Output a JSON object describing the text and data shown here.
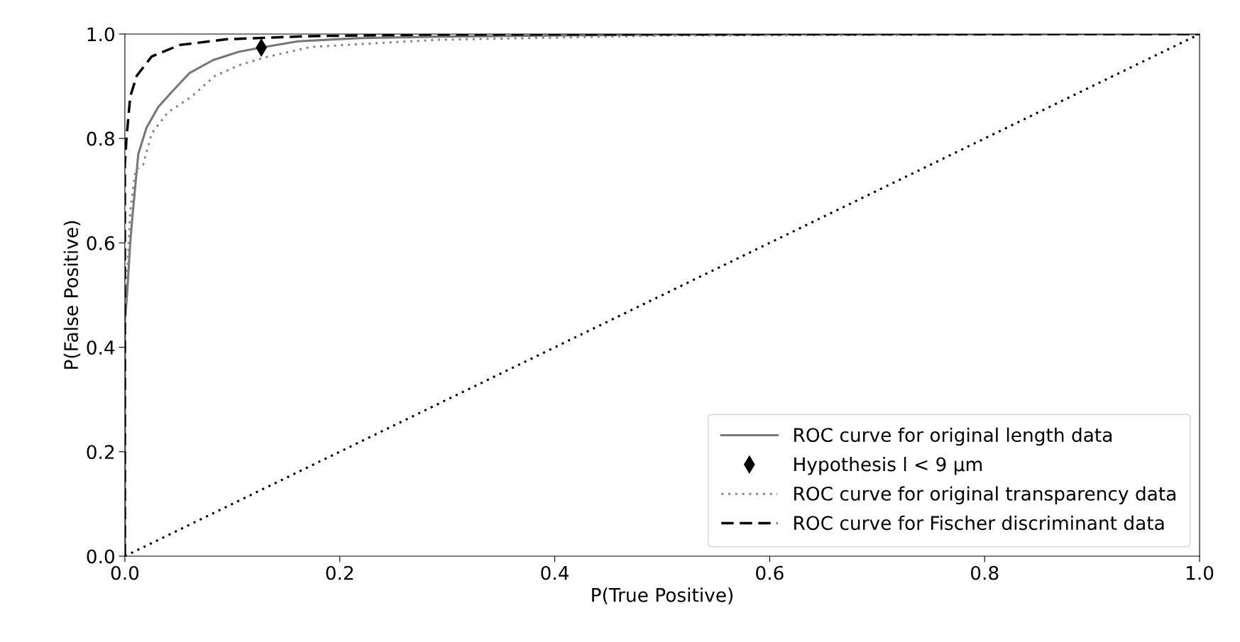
{
  "chart_data": {
    "type": "line",
    "xlabel": "P(True Positive)",
    "ylabel": "P(False Positive)",
    "xlim": [
      0,
      1
    ],
    "ylim": [
      0,
      1
    ],
    "xticks": [
      {
        "value": 0,
        "label": "0.0"
      },
      {
        "value": 0.2,
        "label": "0.2"
      },
      {
        "value": 0.4,
        "label": "0.4"
      },
      {
        "value": 0.6,
        "label": "0.6"
      },
      {
        "value": 0.8,
        "label": "0.8"
      },
      {
        "value": 1,
        "label": "1.0"
      }
    ],
    "yticks": [
      {
        "value": 0,
        "label": "0.0"
      },
      {
        "value": 0.2,
        "label": "0.2"
      },
      {
        "value": 0.4,
        "label": "0.4"
      },
      {
        "value": 0.6,
        "label": "0.6"
      },
      {
        "value": 0.8,
        "label": "0.8"
      },
      {
        "value": 1,
        "label": "1.0"
      }
    ],
    "grid": false,
    "legend": "bottom right",
    "series": [
      {
        "name": "ROC curve for original length data",
        "line_style": "solid",
        "color": "#777777",
        "x": [
          0,
          0,
          0.002,
          0.005,
          0.007,
          0.0125,
          0.02,
          0.031,
          0.044,
          0.06,
          0.082,
          0.106,
          0.127,
          0.161,
          0.216,
          0.293,
          0.5,
          1
        ],
        "values": [
          0,
          0.45,
          0.5,
          0.6,
          0.65,
          0.77,
          0.82,
          0.86,
          0.89,
          0.925,
          0.95,
          0.966,
          0.974,
          0.986,
          0.992,
          0.995,
          0.999,
          1
        ]
      },
      {
        "name": "Hypothesis l < 9 μm",
        "type": "scatter",
        "marker": "diamond",
        "color": "#000000",
        "x": [
          0.127
        ],
        "values": [
          0.974
        ]
      },
      {
        "name": "ROC curve for original transparency data",
        "line_style": "dotted",
        "color": "#888888",
        "x": [
          0,
          0,
          0.005,
          0.01,
          0.017,
          0.025,
          0.04,
          0.062,
          0.084,
          0.106,
          0.128,
          0.172,
          0.238,
          0.293,
          0.5,
          1
        ],
        "values": [
          0,
          0.45,
          0.66,
          0.74,
          0.75,
          0.81,
          0.85,
          0.88,
          0.92,
          0.94,
          0.954,
          0.975,
          0.983,
          0.989,
          0.997,
          1
        ]
      },
      {
        "name": "ROC curve for Fischer discriminant data",
        "line_style": "dashed",
        "color": "#000000",
        "x": [
          0,
          0,
          0.0015,
          0.005,
          0.011,
          0.025,
          0.051,
          0.095,
          0.172,
          0.293,
          1
        ],
        "values": [
          0,
          0.75,
          0.8,
          0.88,
          0.92,
          0.957,
          0.979,
          0.99,
          0.996,
          0.999,
          1
        ]
      },
      {
        "line_style": "dotted",
        "color": "#000000",
        "x": [
          0,
          1
        ],
        "values": [
          0,
          1
        ]
      }
    ]
  }
}
